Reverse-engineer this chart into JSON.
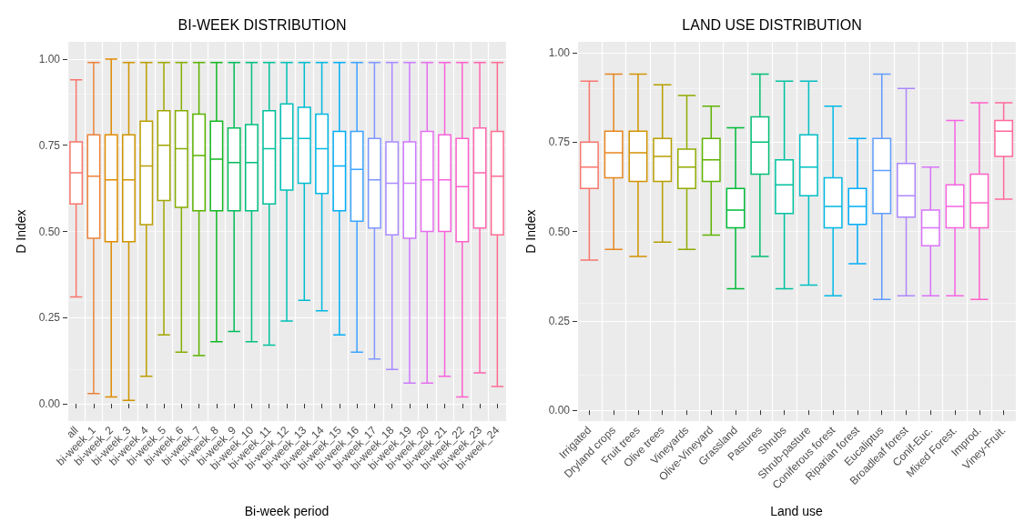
{
  "chart_data": [
    {
      "type": "box",
      "title": "BI-WEEK DISTRIBUTION",
      "xlabel": "Bi-week period",
      "ylabel": "D Index",
      "categories": [
        "all",
        "bi-week_1",
        "bi-week_2",
        "bi-week_3",
        "bi-week_4",
        "bi-week_5",
        "bi-week_6",
        "bi-week_7",
        "bi-week_8",
        "bi-week_9",
        "bi-week_10",
        "bi-week_11",
        "bi-week_12",
        "bi-week_13",
        "bi-week_14",
        "bi-week_15",
        "bi-week_16",
        "bi-week_17",
        "bi-week_18",
        "bi-week_19",
        "bi-week_20",
        "bi-week_21",
        "bi-week_22",
        "bi-week_23",
        "bi-week_24"
      ],
      "colors": [
        "#F8766D",
        "#EC823A",
        "#DF8B00",
        "#CF9500",
        "#BA9E00",
        "#A1A600",
        "#85AD00",
        "#5BB300",
        "#14B822",
        "#00BC5A",
        "#00BF7F",
        "#00C19C",
        "#00C0B8",
        "#00BDCE",
        "#00B8E3",
        "#00AEF6",
        "#3BA3FF",
        "#7F97FF",
        "#A98AFF",
        "#CB7AFF",
        "#E56EF0",
        "#F763DC",
        "#FD61CC",
        "#FF64AF",
        "#FE6C90"
      ],
      "boxes": [
        {
          "low": 0.31,
          "q1": 0.58,
          "median": 0.67,
          "q3": 0.76,
          "high": 0.94
        },
        {
          "low": 0.03,
          "q1": 0.48,
          "median": 0.66,
          "q3": 0.78,
          "high": 0.99
        },
        {
          "low": 0.02,
          "q1": 0.47,
          "median": 0.65,
          "q3": 0.78,
          "high": 1.0
        },
        {
          "low": 0.01,
          "q1": 0.47,
          "median": 0.65,
          "q3": 0.78,
          "high": 0.99
        },
        {
          "low": 0.08,
          "q1": 0.52,
          "median": 0.69,
          "q3": 0.82,
          "high": 0.99
        },
        {
          "low": 0.2,
          "q1": 0.59,
          "median": 0.75,
          "q3": 0.85,
          "high": 0.99
        },
        {
          "low": 0.15,
          "q1": 0.57,
          "median": 0.74,
          "q3": 0.85,
          "high": 0.99
        },
        {
          "low": 0.14,
          "q1": 0.56,
          "median": 0.72,
          "q3": 0.84,
          "high": 0.99
        },
        {
          "low": 0.18,
          "q1": 0.56,
          "median": 0.71,
          "q3": 0.82,
          "high": 0.99
        },
        {
          "low": 0.21,
          "q1": 0.56,
          "median": 0.7,
          "q3": 0.8,
          "high": 0.99
        },
        {
          "low": 0.18,
          "q1": 0.56,
          "median": 0.7,
          "q3": 0.81,
          "high": 0.99
        },
        {
          "low": 0.17,
          "q1": 0.58,
          "median": 0.74,
          "q3": 0.85,
          "high": 0.99
        },
        {
          "low": 0.24,
          "q1": 0.62,
          "median": 0.77,
          "q3": 0.87,
          "high": 0.99
        },
        {
          "low": 0.3,
          "q1": 0.64,
          "median": 0.77,
          "q3": 0.86,
          "high": 0.99
        },
        {
          "low": 0.27,
          "q1": 0.61,
          "median": 0.74,
          "q3": 0.84,
          "high": 0.99
        },
        {
          "low": 0.2,
          "q1": 0.56,
          "median": 0.69,
          "q3": 0.79,
          "high": 0.99
        },
        {
          "low": 0.15,
          "q1": 0.53,
          "median": 0.68,
          "q3": 0.79,
          "high": 0.99
        },
        {
          "low": 0.13,
          "q1": 0.51,
          "median": 0.65,
          "q3": 0.77,
          "high": 0.99
        },
        {
          "low": 0.1,
          "q1": 0.49,
          "median": 0.64,
          "q3": 0.76,
          "high": 0.99
        },
        {
          "low": 0.06,
          "q1": 0.48,
          "median": 0.64,
          "q3": 0.76,
          "high": 0.99
        },
        {
          "low": 0.06,
          "q1": 0.5,
          "median": 0.65,
          "q3": 0.79,
          "high": 0.99
        },
        {
          "low": 0.08,
          "q1": 0.5,
          "median": 0.65,
          "q3": 0.78,
          "high": 0.99
        },
        {
          "low": 0.02,
          "q1": 0.47,
          "median": 0.63,
          "q3": 0.77,
          "high": 0.99
        },
        {
          "low": 0.09,
          "q1": 0.51,
          "median": 0.67,
          "q3": 0.8,
          "high": 0.99
        },
        {
          "low": 0.05,
          "q1": 0.49,
          "median": 0.66,
          "q3": 0.79,
          "high": 0.99
        }
      ],
      "ylim": [
        -0.05,
        1.05
      ],
      "yticks": [
        {
          "value": 0,
          "label": "0.00"
        },
        {
          "value": 0.25,
          "label": "0.25"
        },
        {
          "value": 0.5,
          "label": "0.50"
        },
        {
          "value": 0.75,
          "label": "0.75"
        },
        {
          "value": 1,
          "label": "1.00"
        }
      ],
      "grid": true
    },
    {
      "type": "box",
      "title": "LAND USE DISTRIBUTION",
      "xlabel": "Land use",
      "ylabel": "D Index",
      "categories": [
        "Irrigated",
        "Dryland crops",
        "Fruit trees",
        "Olive trees",
        "Vineyards",
        "Olive-Vineyard",
        "Grassland",
        "Pastures",
        "Shrubs",
        "Shrub-pasture",
        "Coniferous forest",
        "Riparian forest",
        "Eucaliptus",
        "Broadleaf forest",
        "Conif-Euc.",
        "Mixed Forest.",
        "Improd.",
        "Viney-Fruit."
      ],
      "colors": [
        "#F8766D",
        "#E7851E",
        "#D29300",
        "#B79F00",
        "#93AA00",
        "#5EB300",
        "#00BA38",
        "#00BF74",
        "#00C19F",
        "#00BFC4",
        "#00B9E3",
        "#00ADFA",
        "#619CFF",
        "#AE87FF",
        "#DB72FB",
        "#F564E3",
        "#FF61C9",
        "#FF699C"
      ],
      "boxes": [
        {
          "low": 0.42,
          "q1": 0.62,
          "median": 0.68,
          "q3": 0.75,
          "high": 0.92
        },
        {
          "low": 0.45,
          "q1": 0.65,
          "median": 0.72,
          "q3": 0.78,
          "high": 0.94
        },
        {
          "low": 0.43,
          "q1": 0.64,
          "median": 0.72,
          "q3": 0.78,
          "high": 0.94
        },
        {
          "low": 0.47,
          "q1": 0.64,
          "median": 0.71,
          "q3": 0.76,
          "high": 0.91
        },
        {
          "low": 0.45,
          "q1": 0.62,
          "median": 0.68,
          "q3": 0.73,
          "high": 0.88
        },
        {
          "low": 0.49,
          "q1": 0.64,
          "median": 0.7,
          "q3": 0.76,
          "high": 0.85
        },
        {
          "low": 0.34,
          "q1": 0.51,
          "median": 0.56,
          "q3": 0.62,
          "high": 0.79
        },
        {
          "low": 0.43,
          "q1": 0.66,
          "median": 0.75,
          "q3": 0.82,
          "high": 0.94
        },
        {
          "low": 0.34,
          "q1": 0.55,
          "median": 0.63,
          "q3": 0.7,
          "high": 0.92
        },
        {
          "low": 0.35,
          "q1": 0.6,
          "median": 0.68,
          "q3": 0.77,
          "high": 0.92
        },
        {
          "low": 0.32,
          "q1": 0.51,
          "median": 0.57,
          "q3": 0.65,
          "high": 0.85
        },
        {
          "low": 0.41,
          "q1": 0.52,
          "median": 0.57,
          "q3": 0.62,
          "high": 0.76
        },
        {
          "low": 0.31,
          "q1": 0.55,
          "median": 0.67,
          "q3": 0.76,
          "high": 0.94
        },
        {
          "low": 0.32,
          "q1": 0.54,
          "median": 0.6,
          "q3": 0.69,
          "high": 0.9
        },
        {
          "low": 0.32,
          "q1": 0.46,
          "median": 0.51,
          "q3": 0.56,
          "high": 0.68
        },
        {
          "low": 0.32,
          "q1": 0.51,
          "median": 0.57,
          "q3": 0.63,
          "high": 0.81
        },
        {
          "low": 0.31,
          "q1": 0.51,
          "median": 0.58,
          "q3": 0.66,
          "high": 0.86
        },
        {
          "low": 0.59,
          "q1": 0.71,
          "median": 0.78,
          "q3": 0.81,
          "high": 0.86
        }
      ],
      "ylim": [
        -0.03,
        1.03
      ],
      "yticks": [
        {
          "value": 0,
          "label": "0.00"
        },
        {
          "value": 0.25,
          "label": "0.25"
        },
        {
          "value": 0.5,
          "label": "0.50"
        },
        {
          "value": 0.75,
          "label": "0.75"
        },
        {
          "value": 1,
          "label": "1.00"
        }
      ],
      "grid": true
    }
  ]
}
